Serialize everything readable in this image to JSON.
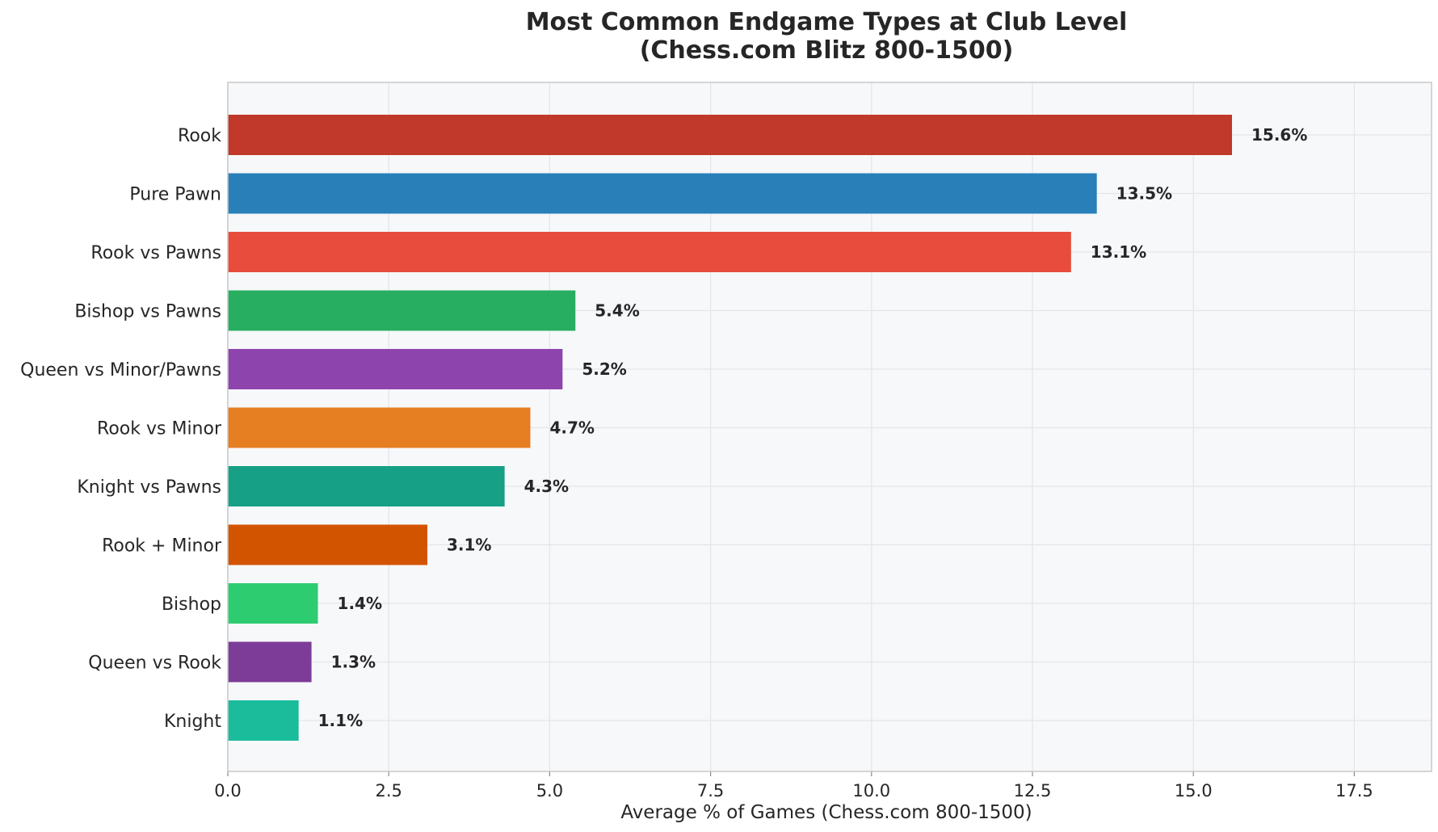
{
  "chart_data": {
    "type": "bar",
    "orientation": "horizontal",
    "title_line1": "Most Common Endgame Types at Club Level",
    "title_line2": "(Chess.com Blitz 800-1500)",
    "xlabel": "Average % of Games (Chess.com 800-1500)",
    "ylabel": "",
    "xlim": [
      0,
      18.7
    ],
    "xticks": [
      0.0,
      2.5,
      5.0,
      7.5,
      10.0,
      12.5,
      15.0,
      17.5
    ],
    "xtick_labels": [
      "0.0",
      "2.5",
      "5.0",
      "7.5",
      "10.0",
      "12.5",
      "15.0",
      "17.5"
    ],
    "grid": true,
    "categories": [
      "Rook",
      "Pure Pawn",
      "Rook vs Pawns",
      "Bishop vs Pawns",
      "Queen vs Minor/Pawns",
      "Rook vs Minor",
      "Knight vs Pawns",
      "Rook + Minor",
      "Bishop",
      "Queen vs Rook",
      "Knight"
    ],
    "values": [
      15.6,
      13.5,
      13.1,
      5.4,
      5.2,
      4.7,
      4.3,
      3.1,
      1.4,
      1.3,
      1.1
    ],
    "value_labels": [
      "15.6%",
      "13.5%",
      "13.1%",
      "5.4%",
      "5.2%",
      "4.7%",
      "4.3%",
      "3.1%",
      "1.4%",
      "1.3%",
      "1.1%"
    ],
    "colors": [
      "#c0392b",
      "#2980b9",
      "#e74c3c",
      "#27ae60",
      "#8e44ad",
      "#e67e22",
      "#16a085",
      "#d35400",
      "#2ecc71",
      "#7d3c98",
      "#1abc9c"
    ],
    "plot_background": "#f7f8fa"
  }
}
